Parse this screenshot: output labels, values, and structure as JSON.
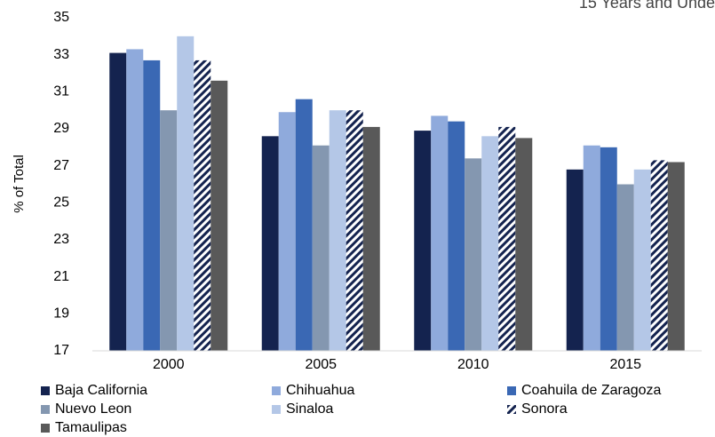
{
  "chart_data": {
    "type": "bar",
    "title": "15 Years and Unde",
    "y_label": "% of Total",
    "categories": [
      "2000",
      "2005",
      "2010",
      "2015"
    ],
    "series": [
      {
        "name": "Baja California",
        "color": "#14234f",
        "values": [
          33.1,
          28.6,
          28.9,
          26.8
        ]
      },
      {
        "name": "Chihuahua",
        "color": "#8faadc",
        "values": [
          33.3,
          29.9,
          29.7,
          28.1
        ]
      },
      {
        "name": "Coahuila de Zaragoza",
        "color": "#3a68b4",
        "values": [
          32.7,
          30.6,
          29.4,
          28.0
        ]
      },
      {
        "name": "Nuevo Leon",
        "color": "#8497b0",
        "values": [
          30.0,
          28.1,
          27.4,
          26.0
        ]
      },
      {
        "name": "Sinaloa",
        "color": "#b4c7e7",
        "values": [
          34.0,
          30.0,
          28.6,
          26.8
        ]
      },
      {
        "name": "Sonora",
        "color": "#14234f",
        "pattern": "diagonal-stripes",
        "values": [
          32.7,
          30.0,
          29.1,
          27.3
        ]
      },
      {
        "name": "Tamaulipas",
        "color": "#595959",
        "values": [
          31.6,
          29.1,
          28.5,
          27.2
        ]
      }
    ],
    "ylim": [
      17,
      35
    ],
    "yticks": [
      17,
      19,
      21,
      23,
      25,
      27,
      29,
      31,
      33,
      35
    ],
    "grid": false,
    "legend": "bottom"
  }
}
